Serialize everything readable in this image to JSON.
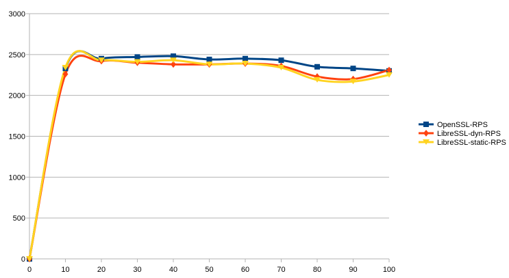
{
  "chart_data": {
    "type": "line",
    "title": "",
    "xlabel": "",
    "ylabel": "",
    "x": [
      0,
      10,
      20,
      30,
      40,
      50,
      60,
      70,
      80,
      90,
      100
    ],
    "xlim": [
      0,
      100
    ],
    "ylim": [
      0,
      3000
    ],
    "x_ticks": [
      0,
      10,
      20,
      30,
      40,
      50,
      60,
      70,
      80,
      90,
      100
    ],
    "y_ticks": [
      0,
      500,
      1000,
      1500,
      2000,
      2500,
      3000
    ],
    "grid": "horizontal",
    "legend_position": "right",
    "smoothed": true,
    "series": [
      {
        "name": "OpenSSL-RPS",
        "color": "#004586",
        "marker": "square",
        "values": [
          0,
          2330,
          2450,
          2470,
          2480,
          2440,
          2450,
          2430,
          2350,
          2330,
          2300
        ]
      },
      {
        "name": "LibreSSL-dyn-RPS",
        "color": "#ff420e",
        "marker": "diamond",
        "values": [
          0,
          2260,
          2420,
          2400,
          2380,
          2380,
          2390,
          2360,
          2230,
          2200,
          2310
        ]
      },
      {
        "name": "LibreSSL-static-RPS",
        "color": "#ffd320",
        "marker": "triangle-down",
        "values": [
          0,
          2340,
          2430,
          2410,
          2430,
          2380,
          2390,
          2340,
          2190,
          2170,
          2250
        ]
      }
    ]
  }
}
